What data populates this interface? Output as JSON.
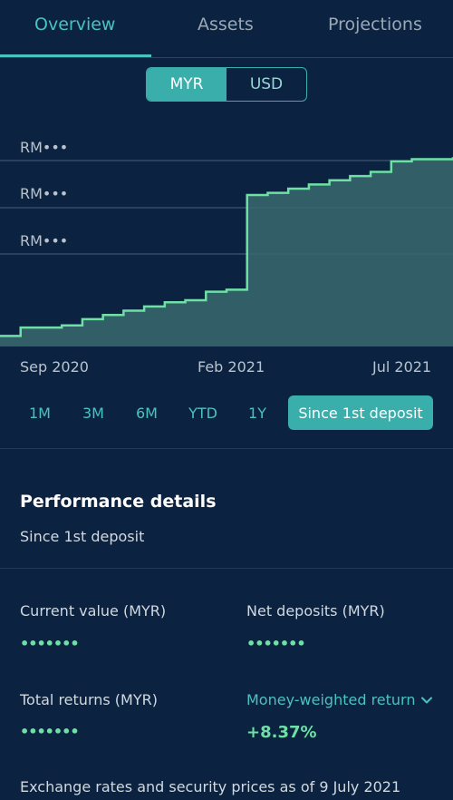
{
  "tabs": [
    {
      "label": "Overview",
      "active": true
    },
    {
      "label": "Assets",
      "active": false
    },
    {
      "label": "Projections",
      "active": false
    }
  ],
  "currency": {
    "options": [
      "MYR",
      "USD"
    ],
    "selected": "MYR"
  },
  "chart_data": {
    "type": "area",
    "ytick_labels": [
      "RM•••",
      "RM•••",
      "RM•••"
    ],
    "xtick_labels": [
      "Sep 2020",
      "Feb 2021",
      "Jul 2021"
    ],
    "series": [
      {
        "values": [
          0.05,
          0.09,
          0.09,
          0.1,
          0.13,
          0.15,
          0.17,
          0.19,
          0.21,
          0.22,
          0.26,
          0.27,
          0.72,
          0.73,
          0.75,
          0.77,
          0.79,
          0.81,
          0.83,
          0.88,
          0.89,
          0.89,
          0.9
        ]
      }
    ],
    "colors": {
      "line": "#6ee0a6",
      "fill": "#3a6a6e"
    }
  },
  "ranges": {
    "options": [
      "1M",
      "3M",
      "6M",
      "YTD",
      "1Y",
      "Since 1st deposit"
    ],
    "selected": "Since 1st deposit"
  },
  "performance": {
    "title": "Performance details",
    "subtitle": "Since 1st deposit",
    "current_value_label": "Current value (MYR)",
    "current_value": "•••••••",
    "net_deposits_label": "Net deposits (MYR)",
    "net_deposits": "•••••••",
    "total_returns_label": "Total returns (MYR)",
    "total_returns": "•••••••",
    "mwr_label": "Money-weighted return",
    "mwr_value": "+8.37%"
  },
  "footnote": "Exchange rates and security prices as of 9 July 2021",
  "colors": {
    "background": "#0b2340",
    "accent": "#49c2c0",
    "positive": "#6ee0a6"
  }
}
